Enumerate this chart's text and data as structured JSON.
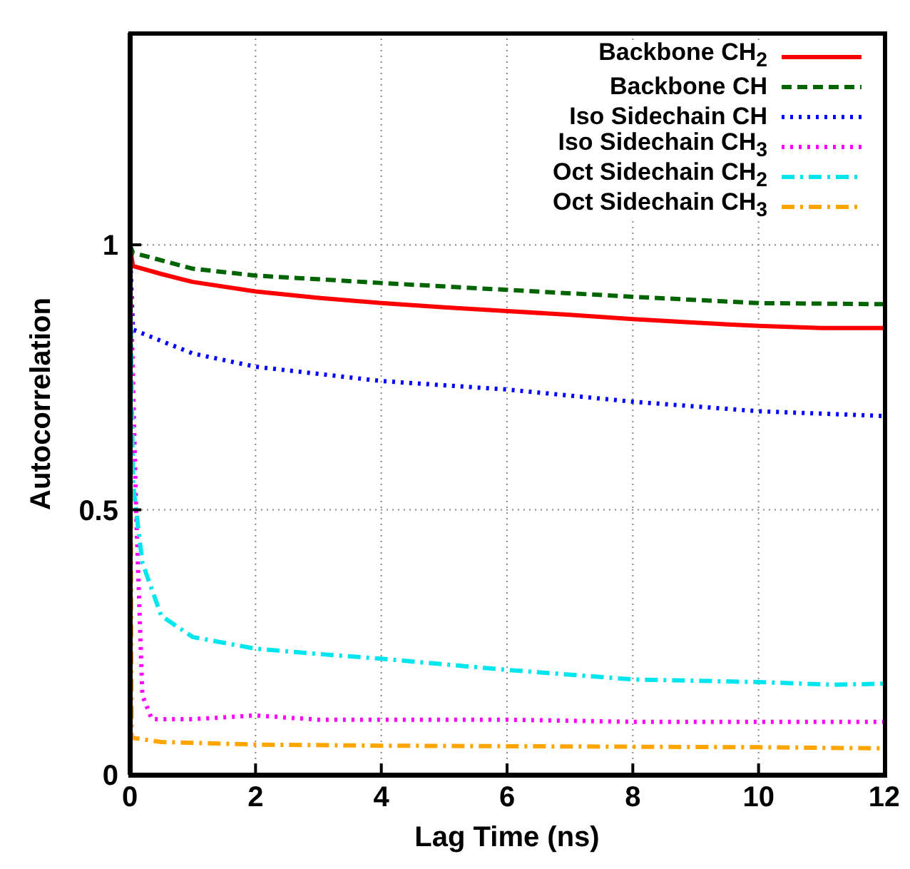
{
  "chart_data": {
    "type": "line",
    "xlabel": "Lag Time (ns)",
    "ylabel": "Autocorrelation",
    "xlim": [
      0,
      12
    ],
    "ylim": [
      0,
      1.4
    ],
    "xticks": [
      0,
      2,
      4,
      6,
      8,
      10,
      12
    ],
    "yticks": [
      0,
      0.5,
      1
    ],
    "grid": true,
    "legend": "top right",
    "marker": "none",
    "series": [
      {
        "name": "Backbone CH$_{2}$",
        "color": "#ff0000",
        "line_style": "solid",
        "x": [
          0,
          0.05,
          0.5,
          1,
          2,
          3,
          4,
          5,
          6,
          7,
          8,
          9,
          10,
          11,
          12
        ],
        "values": [
          1,
          0.96,
          0.945,
          0.93,
          0.912,
          0.9,
          0.89,
          0.882,
          0.875,
          0.868,
          0.86,
          0.853,
          0.847,
          0.843,
          0.843
        ]
      },
      {
        "name": "Backbone CH",
        "color": "#006400",
        "line_style": "dashed",
        "x": [
          0,
          0.05,
          1,
          2,
          4,
          6,
          8,
          10,
          12
        ],
        "values": [
          1,
          0.985,
          0.955,
          0.942,
          0.928,
          0.915,
          0.902,
          0.89,
          0.888
        ]
      },
      {
        "name": "Iso Sidechain CH",
        "color": "#0000ff",
        "line_style": "dotted",
        "x": [
          0,
          0.05,
          1,
          2,
          4,
          6,
          8,
          10,
          12
        ],
        "values": [
          1,
          0.84,
          0.795,
          0.77,
          0.743,
          0.727,
          0.704,
          0.686,
          0.677
        ]
      },
      {
        "name": "Iso Sidechain CH$_{3}$",
        "color": "#ff00ff",
        "line_style": "dotted",
        "x": [
          0,
          0.1,
          0.2,
          0.35,
          1,
          2,
          3,
          4,
          6,
          8,
          10,
          12
        ],
        "values": [
          1,
          0.5,
          0.15,
          0.105,
          0.105,
          0.112,
          0.104,
          0.104,
          0.104,
          0.1,
          0.1,
          0.1
        ]
      },
      {
        "name": "Oct Sidechain CH$_{2}$",
        "color": "#00e5ee",
        "line_style": "dashdot",
        "x": [
          0,
          0.05,
          0.2,
          0.5,
          1,
          2,
          3,
          4,
          6,
          8,
          10,
          11.2,
          12
        ],
        "values": [
          1,
          0.55,
          0.4,
          0.3,
          0.26,
          0.238,
          0.228,
          0.219,
          0.198,
          0.18,
          0.175,
          0.17,
          0.172
        ]
      },
      {
        "name": "Oct Sidechain CH$_{3}$",
        "color": "#ffa500",
        "line_style": "dashdot",
        "x": [
          0,
          0.03,
          0.5,
          2,
          4,
          6,
          8,
          10,
          12
        ],
        "values": [
          1,
          0.07,
          0.062,
          0.057,
          0.055,
          0.054,
          0.053,
          0.052,
          0.05
        ]
      }
    ]
  }
}
